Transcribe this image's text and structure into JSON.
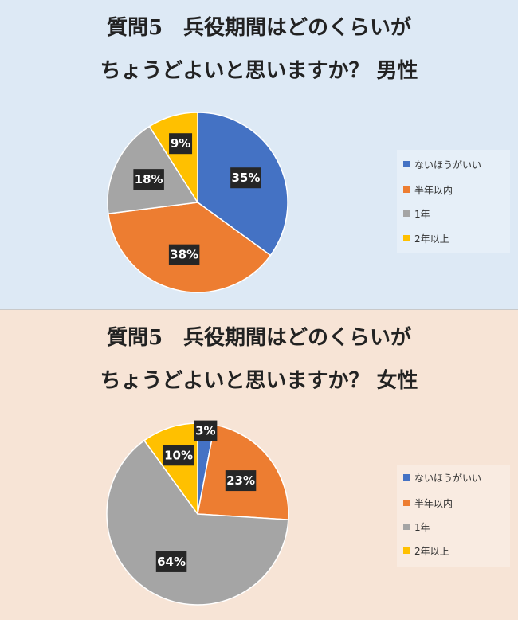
{
  "chart_data": [
    {
      "type": "pie",
      "title_line1": "質問5　兵役期間はどのくらいが",
      "title_line2": "ちょうどよいと思いますか？ 男性",
      "categories": [
        "ないほうがいい",
        "半年以内",
        "1年",
        "2年以上"
      ],
      "values": [
        35,
        38,
        18,
        9
      ],
      "data_labels": [
        "35%",
        "38%",
        "18%",
        "9%"
      ],
      "colors": [
        "#4472c4",
        "#ed7d31",
        "#a5a5a5",
        "#ffc000"
      ],
      "legend": "right"
    },
    {
      "type": "pie",
      "title_line1": "質問5　兵役期間はどのくらいが",
      "title_line2": "ちょうどよいと思いますか？ 女性",
      "categories": [
        "ないほうがいい",
        "半年以内",
        "1年",
        "2年以上"
      ],
      "values": [
        3,
        23,
        64,
        10
      ],
      "data_labels": [
        "3%",
        "23%",
        "64%",
        "10%"
      ],
      "colors": [
        "#4472c4",
        "#ed7d31",
        "#a5a5a5",
        "#ffc000"
      ],
      "legend": "right"
    }
  ]
}
